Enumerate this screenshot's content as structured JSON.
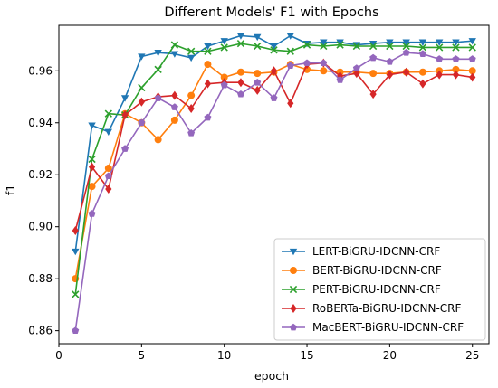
{
  "chart_data": {
    "type": "line",
    "title": "Different Models' F1 with Epochs",
    "xlabel": "epoch",
    "ylabel": "f1",
    "xlim": [
      0,
      26
    ],
    "ylim": [
      0.855,
      0.9775
    ],
    "xticks": [
      0,
      5,
      10,
      15,
      20,
      25
    ],
    "yticks": [
      0.86,
      0.88,
      0.9,
      0.92,
      0.94,
      0.96
    ],
    "grid": false,
    "legend_position": "lower-right",
    "x": [
      1,
      2,
      3,
      4,
      5,
      6,
      7,
      8,
      9,
      10,
      11,
      12,
      13,
      14,
      15,
      16,
      17,
      18,
      19,
      20,
      21,
      22,
      23,
      24,
      25
    ],
    "series": [
      {
        "name": "LERT-BiGRU-IDCNN-CRF",
        "color": "#1f77b4",
        "marker": "triangle-down",
        "values": [
          0.8905,
          0.939,
          0.9365,
          0.9495,
          0.9655,
          0.967,
          0.9665,
          0.965,
          0.9695,
          0.9715,
          0.9735,
          0.973,
          0.9695,
          0.9735,
          0.9705,
          0.971,
          0.971,
          0.97,
          0.9705,
          0.971,
          0.971,
          0.971,
          0.971,
          0.971,
          0.9715
        ]
      },
      {
        "name": "BERT-BiGRU-IDCNN-CRF",
        "color": "#ff7f0e",
        "marker": "circle",
        "values": [
          0.88,
          0.9155,
          0.9225,
          0.9435,
          0.94,
          0.9335,
          0.941,
          0.9505,
          0.9625,
          0.9575,
          0.9595,
          0.959,
          0.9595,
          0.9625,
          0.9605,
          0.96,
          0.9595,
          0.9595,
          0.959,
          0.959,
          0.9595,
          0.9595,
          0.96,
          0.9605,
          0.96
        ]
      },
      {
        "name": "PERT-BiGRU-IDCNN-CRF",
        "color": "#2ca02c",
        "marker": "x",
        "values": [
          0.874,
          0.926,
          0.9435,
          0.943,
          0.9535,
          0.9605,
          0.97,
          0.9675,
          0.9675,
          0.969,
          0.9705,
          0.9695,
          0.968,
          0.9675,
          0.97,
          0.9695,
          0.97,
          0.9695,
          0.9695,
          0.9695,
          0.9695,
          0.969,
          0.969,
          0.969,
          0.969
        ]
      },
      {
        "name": "RoBERTa-BiGRU-IDCNN-CRF",
        "color": "#d62728",
        "marker": "diamond",
        "values": [
          0.8985,
          0.923,
          0.9145,
          0.943,
          0.948,
          0.95,
          0.9505,
          0.9455,
          0.955,
          0.9555,
          0.9555,
          0.9525,
          0.96,
          0.9475,
          0.9625,
          0.963,
          0.958,
          0.959,
          0.951,
          0.9585,
          0.9595,
          0.955,
          0.9585,
          0.9585,
          0.9575
        ]
      },
      {
        "name": "MacBERT-BiGRU-IDCNN-CRF",
        "color": "#9467bd",
        "marker": "pentagon",
        "values": [
          0.86,
          0.905,
          0.9195,
          0.93,
          0.94,
          0.9495,
          0.946,
          0.936,
          0.942,
          0.9545,
          0.951,
          0.9555,
          0.9495,
          0.962,
          0.963,
          0.963,
          0.9565,
          0.961,
          0.965,
          0.9635,
          0.967,
          0.9665,
          0.9645,
          0.9645,
          0.9645
        ]
      }
    ]
  }
}
